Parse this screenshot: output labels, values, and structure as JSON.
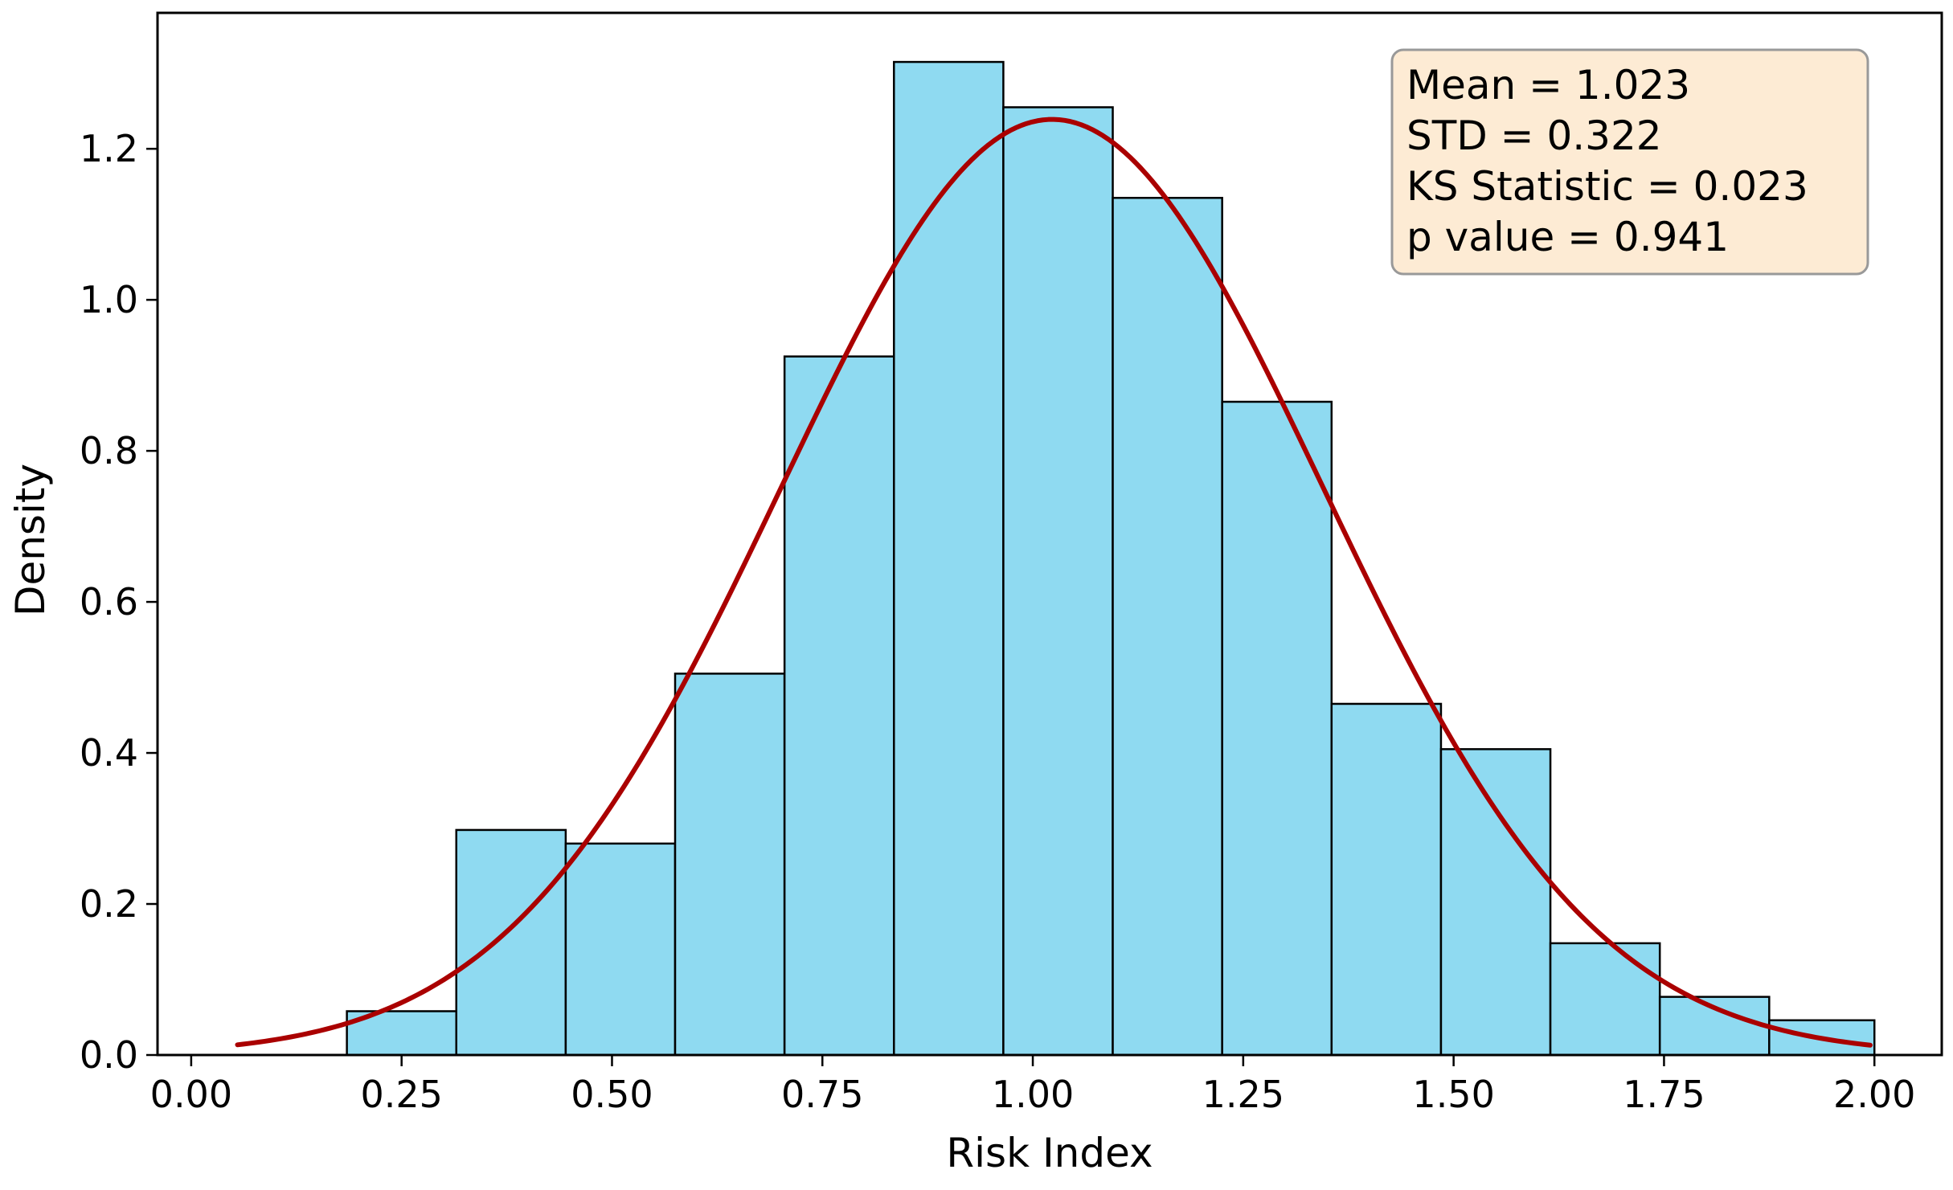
{
  "chart_data": {
    "type": "bar",
    "subtype": "histogram-with-fitted-normal",
    "title": "",
    "xlabel": "Risk Index",
    "ylabel": "Density",
    "xlim": [
      -0.04,
      2.08
    ],
    "ylim": [
      0.0,
      1.38
    ],
    "xticks": [
      0.0,
      0.25,
      0.5,
      0.75,
      1.0,
      1.25,
      1.5,
      1.75,
      2.0
    ],
    "xtick_labels": [
      "0.00",
      "0.25",
      "0.50",
      "0.75",
      "1.00",
      "1.25",
      "1.50",
      "1.75",
      "2.00"
    ],
    "yticks": [
      0.0,
      0.2,
      0.4,
      0.6,
      0.8,
      1.0,
      1.2
    ],
    "ytick_labels": [
      "0.0",
      "0.2",
      "0.4",
      "0.6",
      "0.8",
      "1.0",
      "1.2"
    ],
    "grid": false,
    "bins": [
      {
        "x0": 0.185,
        "x1": 0.315,
        "density": 0.058
      },
      {
        "x0": 0.315,
        "x1": 0.445,
        "density": 0.298
      },
      {
        "x0": 0.445,
        "x1": 0.575,
        "density": 0.28
      },
      {
        "x0": 0.575,
        "x1": 0.705,
        "density": 0.505
      },
      {
        "x0": 0.705,
        "x1": 0.835,
        "density": 0.925
      },
      {
        "x0": 0.835,
        "x1": 0.965,
        "density": 1.315
      },
      {
        "x0": 0.965,
        "x1": 1.095,
        "density": 1.255
      },
      {
        "x0": 1.095,
        "x1": 1.225,
        "density": 1.135
      },
      {
        "x0": 1.225,
        "x1": 1.355,
        "density": 0.865
      },
      {
        "x0": 1.355,
        "x1": 1.485,
        "density": 0.465
      },
      {
        "x0": 1.485,
        "x1": 1.615,
        "density": 0.405
      },
      {
        "x0": 1.615,
        "x1": 1.745,
        "density": 0.148
      },
      {
        "x0": 1.745,
        "x1": 1.875,
        "density": 0.077
      },
      {
        "x0": 1.875,
        "x1": 2.0,
        "density": 0.046
      }
    ],
    "fit_curve": {
      "distribution": "normal",
      "mean": 1.023,
      "std": 0.322,
      "x_range": [
        0.055,
        1.995
      ],
      "color": "#aa0000"
    },
    "bar_fill": "#8fdaf1",
    "bar_edge": "#000000",
    "stats_box": {
      "lines": [
        "Mean = 1.023",
        "STD = 0.322",
        "KS Statistic = 0.023",
        "p value = 0.941"
      ],
      "placement": "top-right",
      "background": "#fdebd4",
      "border": "#999999"
    }
  }
}
